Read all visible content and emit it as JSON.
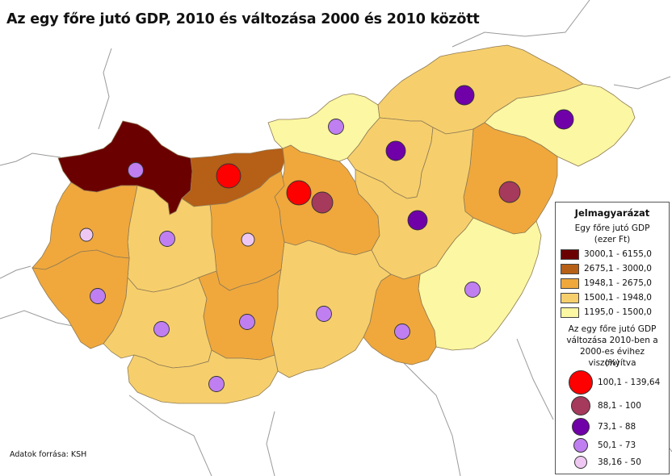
{
  "title": "Az egy főre jutó GDP, 2010 és változása 2000 és 2010 között",
  "source": "Adatok forrása: KSH",
  "colors": {
    "gdp_class_1": "#6b0000",
    "gdp_class_2": "#b65f16",
    "gdp_class_3": "#f0a83c",
    "gdp_class_4": "#f6cf6c",
    "gdp_class_5": "#fbf7a2",
    "change_class_1": "#ff0000",
    "change_class_2": "#a63a5c",
    "change_class_3": "#7000a8",
    "change_class_4": "#c07ff0",
    "change_class_5": "#eec8f2"
  },
  "legend": {
    "title": "Jelmagyarázat",
    "gdp_title_line1": "Egy főre jutó GDP",
    "gdp_title_line2": "(ezer Ft)",
    "gdp_classes": [
      "3000,1 - 6155,0",
      "2675,1 - 3000,0",
      "1948,1 - 2675,0",
      "1500,1 - 1948,0",
      "1195,0 - 1500,0"
    ],
    "change_title_line1": "Az egy főre jutó GDP",
    "change_title_line2": "változása 2010-ben a",
    "change_title_line3": "2000-es évihez viszonyítva",
    "change_title_line4": "(%)",
    "change_classes": [
      "100,1 - 139,64",
      "88,1 - 100",
      "73,1 - 88",
      "50,1 - 73",
      "38,16 - 50"
    ]
  },
  "counties": [
    {
      "id": "gyor-moson-sopron",
      "gdp_class": 1,
      "change_class": 4
    },
    {
      "id": "komarom-esztergom",
      "gdp_class": 2,
      "change_class": 1
    },
    {
      "id": "budapest",
      "gdp_class": 1,
      "change_class": 1
    },
    {
      "id": "pest",
      "gdp_class": 3,
      "change_class": 2
    },
    {
      "id": "nograd",
      "gdp_class": 5,
      "change_class": 4
    },
    {
      "id": "borsod-abauj-zemplen",
      "gdp_class": 4,
      "change_class": 3
    },
    {
      "id": "szabolcs-szatmar-bereg",
      "gdp_class": 5,
      "change_class": 3
    },
    {
      "id": "heves",
      "gdp_class": 4,
      "change_class": 3
    },
    {
      "id": "hajdu-bihar",
      "gdp_class": 3,
      "change_class": 2
    },
    {
      "id": "jasz-nagykun-szolnok",
      "gdp_class": 4,
      "change_class": 3
    },
    {
      "id": "bekes",
      "gdp_class": 5,
      "change_class": 4
    },
    {
      "id": "csongrad",
      "gdp_class": 3,
      "change_class": 4
    },
    {
      "id": "bacs-kiskun",
      "gdp_class": 4,
      "change_class": 4
    },
    {
      "id": "fejer",
      "gdp_class": 3,
      "change_class": 5
    },
    {
      "id": "veszprem",
      "gdp_class": 4,
      "change_class": 4
    },
    {
      "id": "vas",
      "gdp_class": 3,
      "change_class": 5
    },
    {
      "id": "zala",
      "gdp_class": 3,
      "change_class": 4
    },
    {
      "id": "somogy",
      "gdp_class": 4,
      "change_class": 4
    },
    {
      "id": "tolna",
      "gdp_class": 3,
      "change_class": 4
    },
    {
      "id": "baranya",
      "gdp_class": 4,
      "change_class": 4
    }
  ]
}
